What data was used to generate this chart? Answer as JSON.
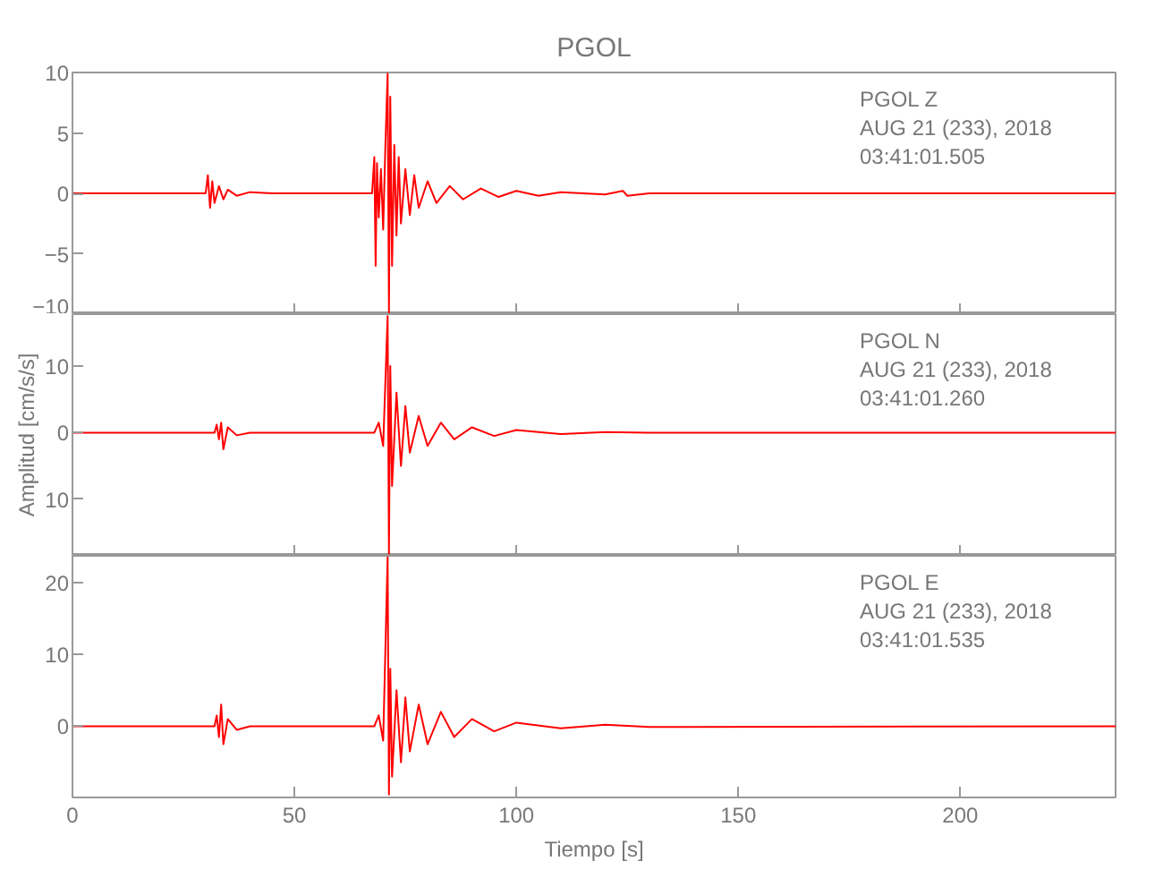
{
  "chart_data": [
    {
      "type": "line",
      "title": "PGOL",
      "xlim": [
        0,
        235
      ],
      "xticks": [
        0,
        50,
        100,
        150,
        200
      ],
      "ylim": [
        -10,
        10
      ],
      "yticks": [
        -10,
        -5,
        0,
        5,
        10
      ],
      "tick_labels": "y",
      "grid": false,
      "annotations": [
        "PGOL  Z",
        "AUG 21 (233), 2018",
        "03:41:01.505"
      ],
      "series": [
        {
          "color": "#ff0000",
          "x": [
            0,
            30,
            30.5,
            31,
            31.5,
            32,
            33,
            34,
            35,
            37,
            40,
            45,
            67.5,
            68,
            68.3,
            68.6,
            69,
            69.5,
            70,
            70.5,
            71,
            71.3,
            71.6,
            72,
            72.5,
            73,
            73.5,
            74,
            75,
            76,
            77,
            78,
            80,
            82,
            85,
            88,
            92,
            96,
            100,
            105,
            110,
            120,
            124,
            125,
            130,
            235
          ],
          "values": [
            0,
            0,
            1.5,
            -1.2,
            1,
            -0.8,
            0.6,
            -0.5,
            0.3,
            -0.2,
            0.1,
            0,
            0,
            3,
            -6,
            2.5,
            -2,
            2,
            -3,
            4,
            9.9,
            -9.9,
            8,
            -6,
            4,
            -3.5,
            3,
            -2.5,
            2,
            -1.8,
            1.5,
            -1.2,
            1,
            -0.8,
            0.6,
            -0.5,
            0.4,
            -0.3,
            0.2,
            -0.2,
            0.1,
            -0.1,
            0.2,
            -0.2,
            0,
            0
          ]
        }
      ]
    },
    {
      "type": "line",
      "ylabel": "Amplitud [cm/s/s]",
      "xlim": [
        0,
        235
      ],
      "xticks": [
        0,
        50,
        100,
        150,
        200
      ],
      "ylim": [
        -18.5,
        17.8
      ],
      "yticks": [
        {
          "value": -10,
          "label": "10"
        },
        0,
        10
      ],
      "tick_labels": "y",
      "grid": false,
      "annotations": [
        "PGOL  N",
        "AUG 21 (233), 2018",
        "03:41:01.260"
      ],
      "series": [
        {
          "color": "#ff0000",
          "x": [
            0,
            32,
            32.5,
            33,
            33.5,
            34,
            35,
            37,
            40,
            68,
            69,
            70,
            71,
            71.3,
            71.6,
            72,
            73,
            74,
            75,
            76,
            78,
            80,
            83,
            86,
            90,
            95,
            100,
            110,
            120,
            130,
            235
          ],
          "values": [
            0,
            0,
            1.2,
            -1,
            1.5,
            -2.5,
            0.8,
            -0.4,
            0,
            0,
            1.5,
            -2,
            17.5,
            -18.2,
            10,
            -8,
            6,
            -5,
            4,
            -3,
            2.5,
            -2,
            1.5,
            -1,
            0.8,
            -0.5,
            0.4,
            -0.2,
            0.1,
            0,
            0
          ]
        }
      ]
    },
    {
      "type": "line",
      "xlabel": "Tiempo [s]",
      "xlim": [
        0,
        235
      ],
      "xticks": [
        0,
        50,
        100,
        150,
        200
      ],
      "ylim": [
        -9.9,
        23.7
      ],
      "yticks": [
        0,
        10,
        20
      ],
      "grid": false,
      "annotations": [
        "PGOL  E",
        "AUG 21 (233), 2018",
        "03:41:01.535"
      ],
      "series": [
        {
          "color": "#ff0000",
          "x": [
            0,
            32,
            32.5,
            33,
            33.5,
            34,
            35,
            37,
            40,
            68,
            69,
            70,
            71,
            71.3,
            71.6,
            72,
            73,
            74,
            75,
            76,
            78,
            80,
            83,
            86,
            90,
            95,
            100,
            110,
            120,
            130,
            235
          ],
          "values": [
            0,
            0,
            1.5,
            -1.5,
            3,
            -2.5,
            1,
            -0.5,
            0,
            0,
            1.5,
            -2,
            23.5,
            -9.5,
            8,
            -7,
            5,
            -5,
            4,
            -3.5,
            3,
            -2.5,
            2,
            -1.5,
            1,
            -0.7,
            0.5,
            -0.3,
            0.2,
            -0.1,
            0
          ]
        }
      ]
    }
  ]
}
